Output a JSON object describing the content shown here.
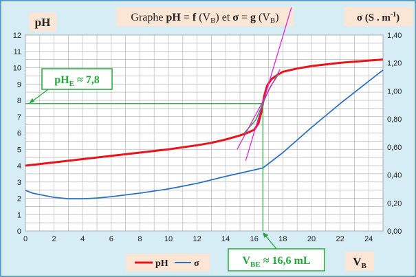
{
  "chart_data": {
    "type": "line",
    "title": "Graphe pH = f (VB) et σ = g (VB)",
    "title_parts": {
      "prefix": "Graphe ",
      "ph": "pH",
      "eq1": " = ",
      "f": "f",
      "vb_open1": " (V",
      "vb_sub1": "B",
      "vb_close1": ") et ",
      "sigma": "σ",
      "eq2": " = ",
      "g": "g",
      "vb_open2": " (V",
      "vb_sub2": "B",
      "vb_close2": ")"
    },
    "ylabel_left": "pH",
    "ylabel_right": {
      "main": "σ (S . m",
      "sup": "-1",
      "close": ")"
    },
    "xlabel": {
      "main": "V",
      "sub": "B"
    },
    "x_range": [
      0,
      25
    ],
    "x_ticks": [
      "0",
      "2",
      "4",
      "6",
      "8",
      "10",
      "12",
      "14",
      "16",
      "18",
      "20",
      "22",
      "24"
    ],
    "y_left_range": [
      0,
      12
    ],
    "y_left_ticks": [
      "0",
      "1",
      "2",
      "3",
      "4",
      "5",
      "6",
      "7",
      "8",
      "9",
      "10",
      "11",
      "12"
    ],
    "y_right_range": [
      0,
      1.4
    ],
    "y_right_ticks": [
      "0,00",
      "0,20",
      "0,40",
      "0,60",
      "0,80",
      "1,00",
      "1,20",
      "1,40"
    ],
    "grid": true,
    "legend_position": "bottom-center",
    "series": [
      {
        "name": "pH",
        "axis": "left",
        "color": "#e8141b",
        "x": [
          0,
          2,
          4,
          6,
          8,
          10,
          12,
          13,
          14,
          15,
          15.5,
          16,
          16.3,
          16.5,
          16.6,
          16.7,
          16.9,
          17.2,
          17.6,
          18,
          19,
          20,
          21,
          22,
          23,
          24,
          25
        ],
        "y": [
          4.0,
          4.2,
          4.4,
          4.6,
          4.8,
          5.0,
          5.25,
          5.4,
          5.6,
          5.85,
          6.0,
          6.2,
          6.6,
          7.3,
          7.8,
          8.3,
          8.9,
          9.3,
          9.55,
          9.75,
          9.95,
          10.1,
          10.2,
          10.3,
          10.37,
          10.44,
          10.5
        ]
      },
      {
        "name": "σ",
        "axis": "right",
        "color": "#2b72c3",
        "x": [
          0,
          0.5,
          1,
          2,
          3,
          4,
          5,
          6,
          8,
          10,
          12,
          14,
          16.6,
          18,
          20,
          22,
          24,
          25
        ],
        "y": [
          0.29,
          0.27,
          0.26,
          0.24,
          0.23,
          0.23,
          0.235,
          0.245,
          0.27,
          0.3,
          0.34,
          0.39,
          0.45,
          0.56,
          0.74,
          0.91,
          1.07,
          1.15
        ]
      }
    ],
    "tangents": [
      {
        "color": "#e020d0",
        "p1": [
          15.4,
          4.3
        ],
        "p2": [
          18.6,
          13.7
        ]
      },
      {
        "color": "#e020d0",
        "p1": [
          14.8,
          5.0
        ],
        "p2": [
          17.8,
          9.9
        ]
      }
    ],
    "annotations": [
      {
        "id": "pH-E",
        "main": "pH",
        "sub": "E",
        "text": " ≈ 7,8",
        "color": "#21a83a",
        "x": 16.6,
        "y": 7.8
      },
      {
        "id": "V-BE",
        "main": "V",
        "sub": "BE",
        "text": " ≈ 16,6 mL",
        "color": "#21a83a",
        "x": 16.6
      }
    ]
  }
}
